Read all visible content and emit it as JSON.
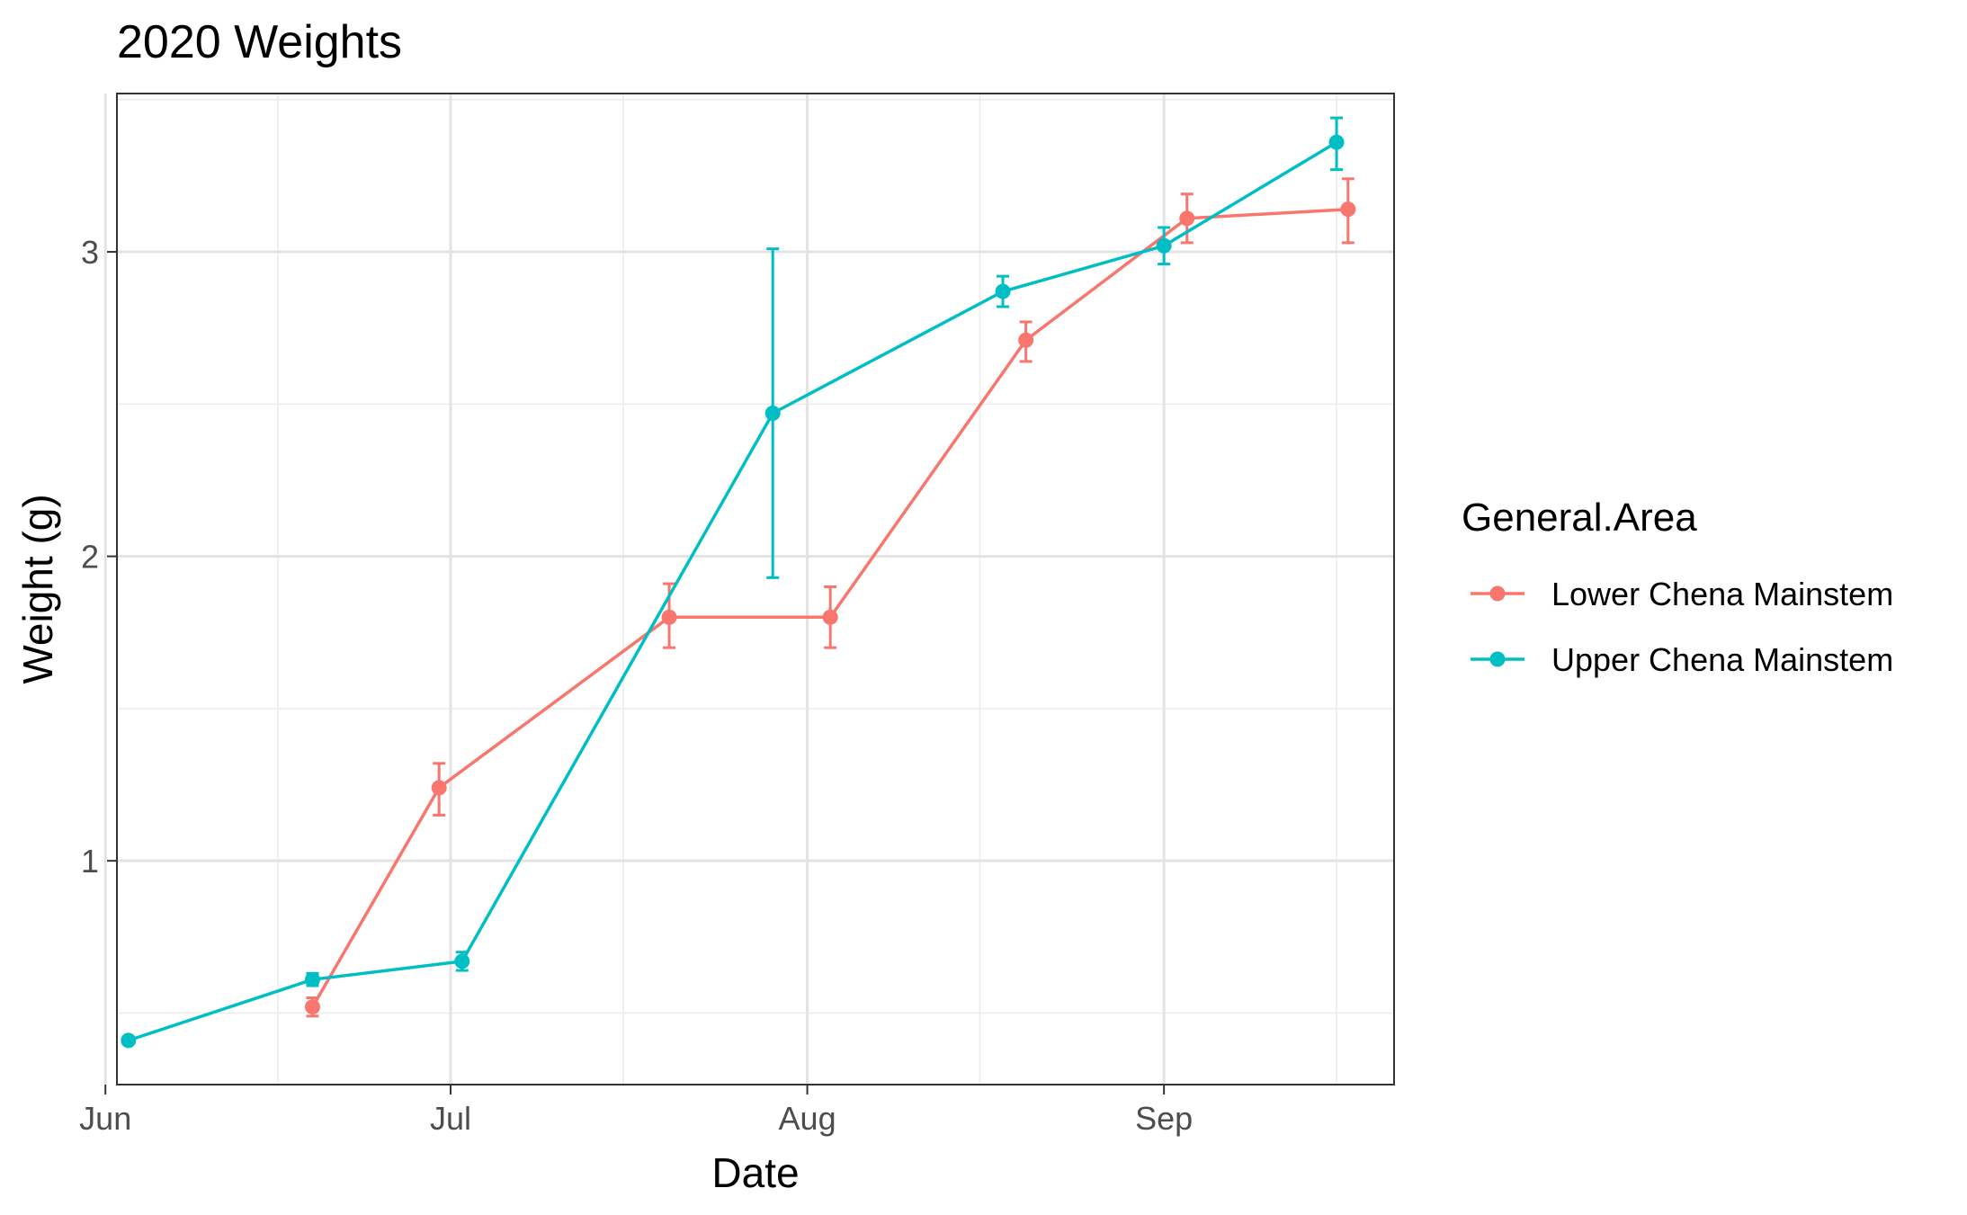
{
  "chart_data": {
    "type": "line",
    "title": "2020 Weights",
    "xlabel": "Date",
    "ylabel": "Weight (g)",
    "x_axis": {
      "type": "date",
      "range": [
        "2020-06-02",
        "2020-09-21"
      ],
      "ticks": [
        {
          "date": "2020-06-01",
          "label": "Jun"
        },
        {
          "date": "2020-07-01",
          "label": "Jul"
        },
        {
          "date": "2020-08-01",
          "label": "Aug"
        },
        {
          "date": "2020-09-01",
          "label": "Sep"
        }
      ],
      "minor_ticks": [
        "2020-06-16",
        "2020-07-16",
        "2020-08-16",
        "2020-09-16"
      ]
    },
    "y_axis": {
      "range": [
        0.265,
        3.52
      ],
      "ticks": [
        1,
        2,
        3
      ],
      "minor_ticks": [
        0.5,
        1.5,
        2.5,
        3.5
      ]
    },
    "grid": true,
    "legend": {
      "title": "General.Area",
      "position": "right"
    },
    "series": [
      {
        "name": "Lower Chena Mainstem",
        "color": "#F8766D",
        "points": [
          {
            "date": "2020-06-19",
            "y": 0.52,
            "ymin": 0.49,
            "ymax": 0.55
          },
          {
            "date": "2020-06-30",
            "y": 1.24,
            "ymin": 1.15,
            "ymax": 1.32
          },
          {
            "date": "2020-07-20",
            "y": 1.8,
            "ymin": 1.7,
            "ymax": 1.91
          },
          {
            "date": "2020-08-03",
            "y": 1.8,
            "ymin": 1.7,
            "ymax": 1.9
          },
          {
            "date": "2020-08-20",
            "y": 2.71,
            "ymin": 2.64,
            "ymax": 2.77
          },
          {
            "date": "2020-09-03",
            "y": 3.11,
            "ymin": 3.03,
            "ymax": 3.19
          },
          {
            "date": "2020-09-17",
            "y": 3.14,
            "ymin": 3.03,
            "ymax": 3.24
          }
        ]
      },
      {
        "name": "Upper Chena Mainstem",
        "color": "#00BFC4",
        "points": [
          {
            "date": "2020-06-03",
            "y": 0.41,
            "ymin": 0.4,
            "ymax": 0.42
          },
          {
            "date": "2020-06-19",
            "y": 0.61,
            "ymin": 0.59,
            "ymax": 0.63
          },
          {
            "date": "2020-07-02",
            "y": 0.67,
            "ymin": 0.64,
            "ymax": 0.7
          },
          {
            "date": "2020-07-29",
            "y": 2.47,
            "ymin": 1.93,
            "ymax": 3.01
          },
          {
            "date": "2020-08-18",
            "y": 2.87,
            "ymin": 2.82,
            "ymax": 2.92
          },
          {
            "date": "2020-09-01",
            "y": 3.02,
            "ymin": 2.96,
            "ymax": 3.08
          },
          {
            "date": "2020-09-16",
            "y": 3.36,
            "ymin": 3.27,
            "ymax": 3.44
          }
        ]
      }
    ]
  }
}
